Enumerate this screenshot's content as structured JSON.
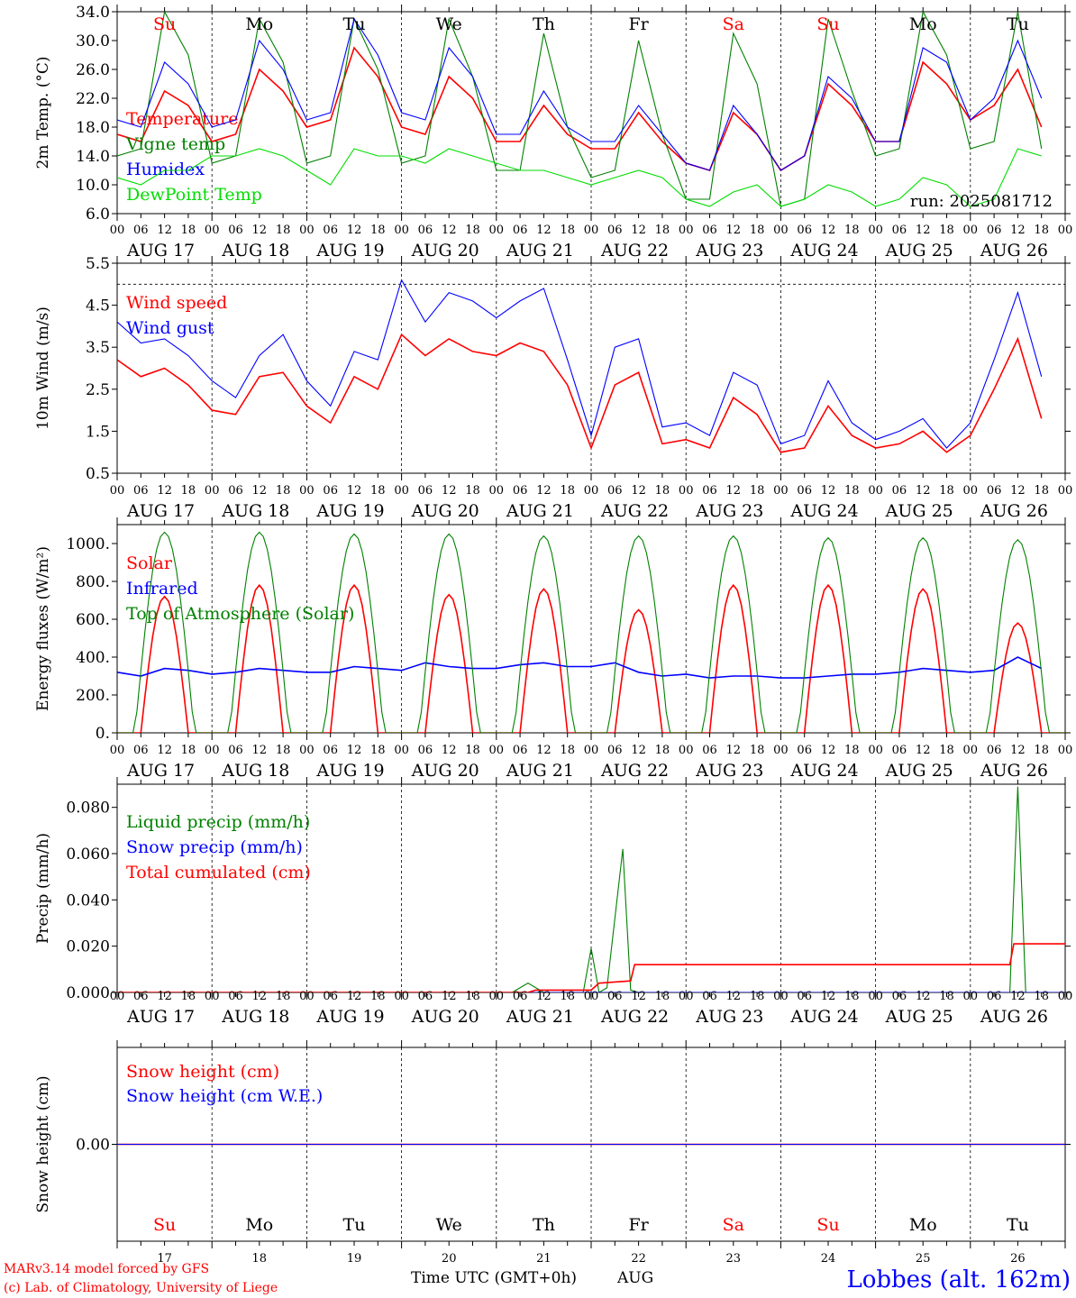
{
  "colors": {
    "red": "#ff0000",
    "green": "#008000",
    "blue": "#0000ff",
    "lime": "#00dd00",
    "black": "#000000",
    "title_blue": "#0000ff"
  },
  "days": {
    "dates": [
      "AUG 17",
      "AUG 18",
      "AUG 19",
      "AUG 20",
      "AUG 21",
      "AUG 22",
      "AUG 23",
      "AUG 24",
      "AUG 25",
      "AUG 26"
    ],
    "weekdays": [
      "Su",
      "Mo",
      "Tu",
      "We",
      "Th",
      "Fr",
      "Sa",
      "Su",
      "Mo",
      "Tu"
    ],
    "weekday_colors": [
      "#ff0000",
      "#000000",
      "#000000",
      "#000000",
      "#000000",
      "#000000",
      "#ff0000",
      "#ff0000",
      "#000000",
      "#000000"
    ],
    "day_numbers": [
      "17",
      "18",
      "19",
      "20",
      "21",
      "22",
      "23",
      "24",
      "25",
      "26"
    ],
    "hour_ticks": [
      "00",
      "06",
      "12",
      "18"
    ]
  },
  "footer": {
    "model": "MARv3.14 model forced by GFS",
    "credit": "(c) Lab. of Climatology, University of Liege",
    "xlabel": "Time UTC (GMT+0h)",
    "month": "AUG",
    "location": "Lobbes (alt. 162m)"
  },
  "chart_data": [
    {
      "type": "line",
      "ylabel": "2m Temp. (°C)",
      "ylim": [
        6,
        34
      ],
      "yticks": [
        "6.0",
        "10.0",
        "14.0",
        "18.0",
        "22.0",
        "26.0",
        "30.0",
        "34.0"
      ],
      "run_label": "run: 2025081712",
      "x_unit": "hours since AUG 17 00 UTC",
      "series": [
        {
          "name": "Temperature",
          "color": "#ff0000",
          "x": [
            0,
            6,
            12,
            18,
            24,
            30,
            36,
            42,
            48,
            54,
            60,
            66,
            72,
            78,
            84,
            90,
            96,
            102,
            108,
            114,
            120,
            126,
            132,
            138,
            144,
            150,
            156,
            162,
            168,
            174,
            180,
            186,
            192,
            198,
            204,
            210,
            216,
            222,
            228,
            234
          ],
          "y": [
            17,
            16,
            23,
            21,
            16,
            17,
            26,
            23,
            18,
            19,
            29,
            25,
            18,
            17,
            25,
            22,
            16,
            16,
            21,
            17,
            15,
            15,
            20,
            16,
            13,
            12,
            20,
            17,
            12,
            14,
            24,
            21,
            16,
            16,
            27,
            24,
            19,
            21,
            26,
            18
          ]
        },
        {
          "name": "Vigne temp",
          "color": "#008000",
          "x": [
            0,
            6,
            12,
            18,
            24,
            30,
            36,
            42,
            48,
            54,
            60,
            66,
            72,
            78,
            84,
            90,
            96,
            102,
            108,
            114,
            120,
            126,
            132,
            138,
            144,
            150,
            156,
            162,
            168,
            174,
            180,
            186,
            192,
            198,
            204,
            210,
            216,
            222,
            228,
            234
          ],
          "y": [
            14,
            15,
            34,
            28,
            13,
            14,
            33,
            27,
            13,
            14,
            33,
            26,
            13,
            14,
            33,
            25,
            12,
            12,
            31,
            18,
            11,
            12,
            30,
            17,
            8,
            8,
            31,
            24,
            7,
            8,
            33,
            23,
            14,
            15,
            34,
            28,
            15,
            16,
            34,
            15
          ]
        },
        {
          "name": "Humidex",
          "color": "#0000ff",
          "x": [
            0,
            6,
            12,
            18,
            24,
            30,
            36,
            42,
            48,
            54,
            60,
            66,
            72,
            78,
            84,
            90,
            96,
            102,
            108,
            114,
            120,
            126,
            132,
            138,
            144,
            150,
            156,
            162,
            168,
            174,
            180,
            186,
            192,
            198,
            204,
            210,
            216,
            222,
            228,
            234
          ],
          "y": [
            19,
            18,
            27,
            24,
            18,
            19,
            30,
            26,
            19,
            20,
            33,
            28,
            20,
            19,
            29,
            25,
            17,
            17,
            23,
            18,
            16,
            16,
            21,
            17,
            13,
            12,
            21,
            17,
            12,
            14,
            25,
            22,
            16,
            16,
            29,
            27,
            19,
            22,
            30,
            22
          ]
        },
        {
          "name": "DewPoint Temp",
          "color": "#00dd00",
          "x": [
            0,
            6,
            12,
            18,
            24,
            30,
            36,
            42,
            48,
            54,
            60,
            66,
            72,
            78,
            84,
            90,
            96,
            102,
            108,
            114,
            120,
            126,
            132,
            138,
            144,
            150,
            156,
            162,
            168,
            174,
            180,
            186,
            192,
            198,
            204,
            210,
            216,
            222,
            228,
            234
          ],
          "y": [
            11,
            10,
            12,
            12,
            14,
            14,
            15,
            14,
            12,
            10,
            15,
            14,
            14,
            13,
            15,
            14,
            13,
            12,
            12,
            11,
            10,
            11,
            12,
            11,
            8,
            7,
            9,
            10,
            7,
            8,
            10,
            9,
            7,
            8,
            11,
            10,
            7,
            8,
            15,
            14
          ]
        }
      ]
    },
    {
      "type": "line",
      "ylabel": "10m Wind (m/s)",
      "ylim": [
        0.5,
        5.5
      ],
      "yticks": [
        "0.5",
        "1.5",
        "2.5",
        "3.5",
        "4.5",
        "5.5"
      ],
      "dashed_level": 5.0,
      "x_unit": "hours since AUG 17 00 UTC",
      "series": [
        {
          "name": "Wind speed",
          "color": "#ff0000",
          "x": [
            0,
            6,
            12,
            18,
            24,
            30,
            36,
            42,
            48,
            54,
            60,
            66,
            72,
            78,
            84,
            90,
            96,
            102,
            108,
            114,
            120,
            126,
            132,
            138,
            144,
            150,
            156,
            162,
            168,
            174,
            180,
            186,
            192,
            198,
            204,
            210,
            216,
            222,
            228,
            234
          ],
          "y": [
            3.2,
            2.8,
            3.0,
            2.6,
            2.0,
            1.9,
            2.8,
            2.9,
            2.1,
            1.7,
            2.8,
            2.5,
            3.8,
            3.3,
            3.7,
            3.4,
            3.3,
            3.6,
            3.4,
            2.6,
            1.1,
            2.6,
            2.9,
            1.2,
            1.3,
            1.1,
            2.3,
            1.9,
            1.0,
            1.1,
            2.1,
            1.4,
            1.1,
            1.2,
            1.5,
            1.0,
            1.4,
            2.5,
            3.7,
            1.8
          ]
        },
        {
          "name": "Wind gust",
          "color": "#0000ff",
          "x": [
            0,
            6,
            12,
            18,
            24,
            30,
            36,
            42,
            48,
            54,
            60,
            66,
            72,
            78,
            84,
            90,
            96,
            102,
            108,
            114,
            120,
            126,
            132,
            138,
            144,
            150,
            156,
            162,
            168,
            174,
            180,
            186,
            192,
            198,
            204,
            210,
            216,
            222,
            228,
            234
          ],
          "y": [
            4.1,
            3.6,
            3.7,
            3.3,
            2.7,
            2.3,
            3.3,
            3.8,
            2.7,
            2.1,
            3.4,
            3.2,
            5.1,
            4.1,
            4.8,
            4.6,
            4.2,
            4.6,
            4.9,
            3.2,
            1.4,
            3.5,
            3.7,
            1.6,
            1.7,
            1.4,
            2.9,
            2.6,
            1.2,
            1.4,
            2.7,
            1.7,
            1.3,
            1.5,
            1.8,
            1.1,
            1.7,
            3.2,
            4.8,
            2.8
          ]
        }
      ]
    },
    {
      "type": "line",
      "ylabel": "Energy fluxes (W/m²)",
      "ylim": [
        0,
        1100
      ],
      "yticks": [
        "0.",
        "200.",
        "400.",
        "600.",
        "800.",
        "1000."
      ],
      "x_unit": "hours since AUG 17 00 UTC",
      "series": [
        {
          "name": "Solar",
          "color": "#ff0000",
          "day_peaks": [
            720,
            780,
            780,
            730,
            760,
            650,
            780,
            780,
            760,
            580
          ]
        },
        {
          "name": "Infrared",
          "color": "#0000ff",
          "x": [
            0,
            6,
            12,
            18,
            24,
            30,
            36,
            42,
            48,
            54,
            60,
            66,
            72,
            78,
            84,
            90,
            96,
            102,
            108,
            114,
            120,
            126,
            132,
            138,
            144,
            150,
            156,
            162,
            168,
            174,
            180,
            186,
            192,
            198,
            204,
            210,
            216,
            222,
            228,
            234
          ],
          "y": [
            320,
            300,
            340,
            330,
            310,
            320,
            340,
            330,
            320,
            320,
            350,
            340,
            330,
            370,
            350,
            340,
            340,
            360,
            370,
            350,
            350,
            370,
            320,
            300,
            310,
            290,
            300,
            300,
            290,
            290,
            300,
            310,
            310,
            320,
            340,
            330,
            320,
            330,
            400,
            340
          ]
        },
        {
          "name": "Top of Atmosphere (Solar)",
          "color": "#008000",
          "day_peaks": [
            1060,
            1060,
            1050,
            1050,
            1040,
            1040,
            1040,
            1030,
            1030,
            1020
          ]
        }
      ]
    },
    {
      "type": "line",
      "ylabel": "Precip (mm/h)",
      "ylim": [
        0,
        0.09
      ],
      "yticks": [
        "0.000",
        "0.020",
        "0.040",
        "0.060",
        "0.080"
      ],
      "x_unit": "hours since AUG 17 00 UTC",
      "series": [
        {
          "name": "Liquid precip (mm/h)",
          "color": "#008000",
          "x": [
            0,
            100,
            104,
            108,
            118,
            120,
            122,
            124,
            128,
            130,
            132,
            134,
            226,
            228,
            230,
            232
          ],
          "y": [
            0,
            0,
            0.004,
            0,
            0,
            0.019,
            0,
            0.002,
            0.062,
            0.001,
            0,
            0,
            0,
            0.089,
            0,
            0
          ]
        },
        {
          "name": "Snow precip (mm/h)",
          "color": "#0000ff",
          "x": [
            0,
            240
          ],
          "y": [
            0,
            0
          ]
        },
        {
          "name": "Total cumulated (cm)",
          "color": "#ff0000",
          "x": [
            0,
            104,
            106,
            120,
            122,
            130,
            131,
            226,
            227,
            240
          ],
          "y": [
            0,
            0,
            0.001,
            0.001,
            0.004,
            0.005,
            0.012,
            0.012,
            0.021,
            0.021
          ]
        }
      ]
    },
    {
      "type": "line",
      "ylabel": "Snow height (cm)",
      "ylim": [
        -1,
        1
      ],
      "yticks": [
        "0.00"
      ],
      "x_unit": "hours since AUG 17 00 UTC",
      "series": [
        {
          "name": "Snow height (cm)",
          "color": "#ff0000",
          "x": [
            0,
            240
          ],
          "y": [
            0,
            0
          ]
        },
        {
          "name": "Snow height (cm W.E.)",
          "color": "#0000ff",
          "x": [
            0,
            240
          ],
          "y": [
            0,
            0
          ]
        }
      ]
    }
  ]
}
